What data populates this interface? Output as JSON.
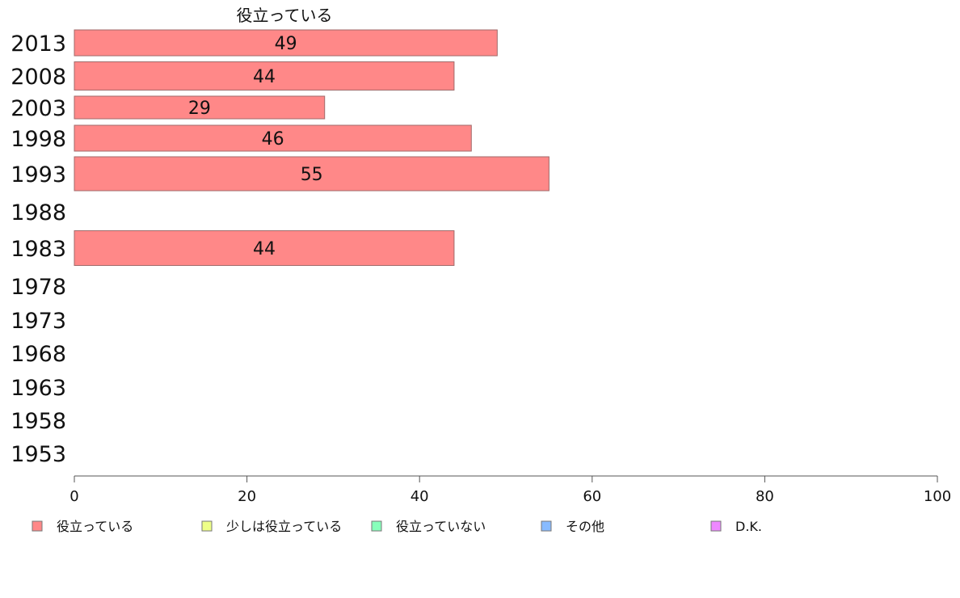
{
  "chart_data": {
    "type": "bar",
    "orientation": "horizontal",
    "stacked": true,
    "categories": [
      "2013",
      "2008",
      "2003",
      "1998",
      "1993",
      "1988",
      "1983",
      "1978",
      "1973",
      "1968",
      "1963",
      "1958",
      "1953"
    ],
    "series": [
      {
        "name": "役立っている",
        "color": "#ff8888",
        "values": [
          49,
          44,
          29,
          46,
          55,
          null,
          44,
          null,
          null,
          null,
          null,
          null,
          null
        ]
      },
      {
        "name": "少しは役立っている",
        "color": "#eeff88",
        "values": [
          null,
          null,
          null,
          null,
          null,
          null,
          null,
          null,
          null,
          null,
          null,
          null,
          null
        ]
      },
      {
        "name": "役立っていない",
        "color": "#88ffbb",
        "values": [
          null,
          null,
          null,
          null,
          null,
          null,
          null,
          null,
          null,
          null,
          null,
          null,
          null
        ]
      },
      {
        "name": "その他",
        "color": "#88bbff",
        "values": [
          null,
          null,
          null,
          null,
          null,
          null,
          null,
          null,
          null,
          null,
          null,
          null,
          null
        ]
      },
      {
        "name": "D.K.",
        "color": "#ee88ff",
        "values": [
          null,
          null,
          null,
          null,
          null,
          null,
          null,
          null,
          null,
          null,
          null,
          null,
          null
        ]
      }
    ],
    "series_title": "役立っている",
    "xlim": [
      0,
      100
    ],
    "xticks": [
      0,
      20,
      40,
      60,
      80,
      100
    ],
    "grid": false,
    "legend_position": "bottom"
  }
}
